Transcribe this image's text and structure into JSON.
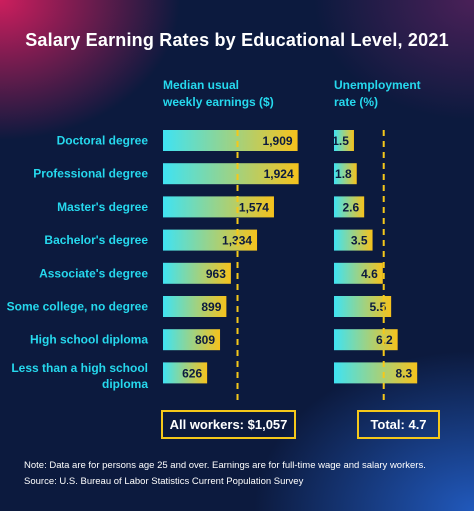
{
  "title": "Salary Earning Rates by Educational Level, 2021",
  "colors": {
    "bar_start": "#3fe3f3",
    "bar_end": "#f6c21c",
    "accent": "#26d9ee",
    "highlight": "#f5c81a",
    "background": "#0c1a3e"
  },
  "chart_data": [
    {
      "type": "bar",
      "orientation": "horizontal",
      "title": "Median usual weekly earnings ($)",
      "categories": [
        "Doctoral degree",
        "Professional degree",
        "Master's degree",
        "Bachelor's degree",
        "Associate's degree",
        "Some college, no degree",
        "High school diploma",
        "Less than a high school diploma"
      ],
      "values": [
        1909,
        1924,
        1574,
        1334,
        963,
        899,
        809,
        626
      ],
      "value_labels": [
        "1,909",
        "1,924",
        "1,574",
        "1,334",
        "963",
        "899",
        "809",
        "626"
      ],
      "reference_line": 1057,
      "summary": "All workers: $1,057"
    },
    {
      "type": "bar",
      "orientation": "horizontal",
      "title": "Unemployment rate (%)",
      "categories": [
        "Doctoral degree",
        "Professional degree",
        "Master's degree",
        "Bachelor's degree",
        "Associate's degree",
        "Some college, no degree",
        "High school diploma",
        "Less than a high school diploma"
      ],
      "values": [
        1.5,
        1.8,
        2.6,
        3.5,
        4.6,
        5.5,
        6.2,
        8.3
      ],
      "value_labels": [
        "1.5",
        "1.8",
        "2.6",
        "3.5",
        "4.6",
        "5.5",
        "6.2",
        "8.3"
      ],
      "reference_line": 4.7,
      "summary": "Total: 4.7"
    }
  ],
  "headers": {
    "earnings_line1": "Median usual",
    "earnings_line2": "weekly earnings ($)",
    "unemp_line1": "Unemployment",
    "unemp_line2": "rate (%)"
  },
  "category_lines": [
    [
      "Doctoral degree"
    ],
    [
      "Professional degree"
    ],
    [
      "Master's degree"
    ],
    [
      "Bachelor's degree"
    ],
    [
      "Associate's degree"
    ],
    [
      "Some college, no degree"
    ],
    [
      "High school diploma"
    ],
    [
      "Less than a high school",
      "diploma"
    ]
  ],
  "note": {
    "line1": "Note: Data are for persons age 25 and over. Earnings are for full-time wage and salary workers.",
    "line2": "Source: U.S. Bureau of Labor Statistics Current Population Survey"
  }
}
